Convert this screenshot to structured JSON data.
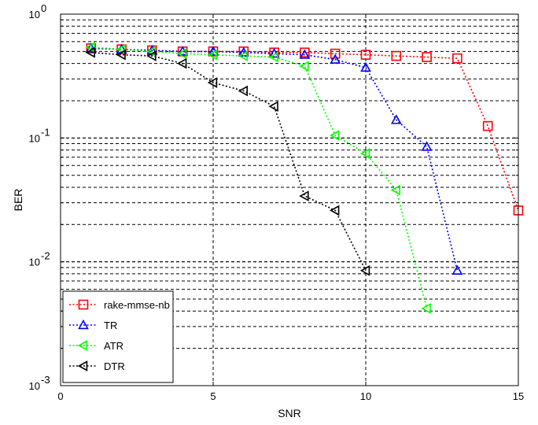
{
  "chart_data": {
    "type": "line",
    "title": "",
    "xlabel": "SNR",
    "ylabel": "BER",
    "xlim": [
      0,
      15
    ],
    "ylim": [
      0.001,
      1
    ],
    "yscale": "log",
    "grid": true,
    "legend_position": "bottom-left",
    "x_ticks": [
      "0",
      "5",
      "10",
      "15"
    ],
    "y_ticks": [
      {
        "base": "10",
        "exp": "-3"
      },
      {
        "base": "10",
        "exp": "-2"
      },
      {
        "base": "10",
        "exp": "-1"
      },
      {
        "base": "10",
        "exp": "0"
      }
    ],
    "series": [
      {
        "name": "rake-mmse-nb",
        "color": "#ff0000",
        "marker": "square",
        "x": [
          1,
          2,
          3,
          4,
          5,
          6,
          7,
          8,
          9,
          10,
          11,
          12,
          13,
          14,
          15
        ],
        "y": [
          0.53,
          0.52,
          0.51,
          0.5,
          0.5,
          0.5,
          0.49,
          0.49,
          0.48,
          0.47,
          0.46,
          0.45,
          0.44,
          0.125,
          0.026
        ]
      },
      {
        "name": "TR",
        "color": "#0000ff",
        "marker": "triangle-up",
        "x": [
          1,
          2,
          3,
          4,
          5,
          6,
          7,
          8,
          9,
          10,
          11,
          12,
          13
        ],
        "y": [
          0.53,
          0.52,
          0.51,
          0.5,
          0.5,
          0.49,
          0.48,
          0.47,
          0.43,
          0.37,
          0.14,
          0.085,
          0.0085
        ]
      },
      {
        "name": "ATR",
        "color": "#00ff00",
        "marker": "triangle-left",
        "x": [
          1,
          2,
          3,
          4,
          5,
          6,
          7,
          8,
          9,
          10,
          11,
          12
        ],
        "y": [
          0.54,
          0.52,
          0.5,
          0.48,
          0.47,
          0.46,
          0.45,
          0.38,
          0.105,
          0.075,
          0.038,
          0.0042
        ]
      },
      {
        "name": "DTR",
        "color": "#000000",
        "marker": "triangle-left",
        "x": [
          1,
          2,
          3,
          4,
          5,
          6,
          7,
          8,
          9,
          10
        ],
        "y": [
          0.49,
          0.47,
          0.46,
          0.4,
          0.28,
          0.24,
          0.18,
          0.034,
          0.026,
          0.0085
        ]
      }
    ]
  }
}
